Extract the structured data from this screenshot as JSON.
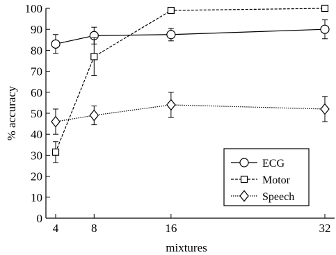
{
  "chart_data": {
    "type": "line",
    "title": "",
    "xlabel": "mixtures",
    "ylabel": "% accuracy",
    "x": [
      4,
      8,
      16,
      32
    ],
    "xlim": [
      4,
      32
    ],
    "ylim": [
      0,
      100
    ],
    "xticks": [
      4,
      8,
      16,
      32
    ],
    "yticks": [
      0,
      10,
      20,
      30,
      40,
      50,
      60,
      70,
      80,
      90,
      100
    ],
    "grid": false,
    "legend_position": "bottom-right",
    "series": [
      {
        "name": "ECG",
        "marker": "circle",
        "line_style": "solid",
        "values": [
          83,
          87,
          87.5,
          90
        ],
        "error": [
          4.5,
          4,
          3,
          4.5
        ]
      },
      {
        "name": "Motor",
        "marker": "square",
        "line_style": "dashed",
        "values": [
          31.5,
          77,
          99,
          100
        ],
        "error": [
          5,
          9,
          1,
          0
        ]
      },
      {
        "name": "Speech",
        "marker": "diamond",
        "line_style": "dotted",
        "values": [
          46,
          49,
          54,
          52
        ],
        "error": [
          6,
          4.5,
          6,
          6
        ]
      }
    ]
  }
}
